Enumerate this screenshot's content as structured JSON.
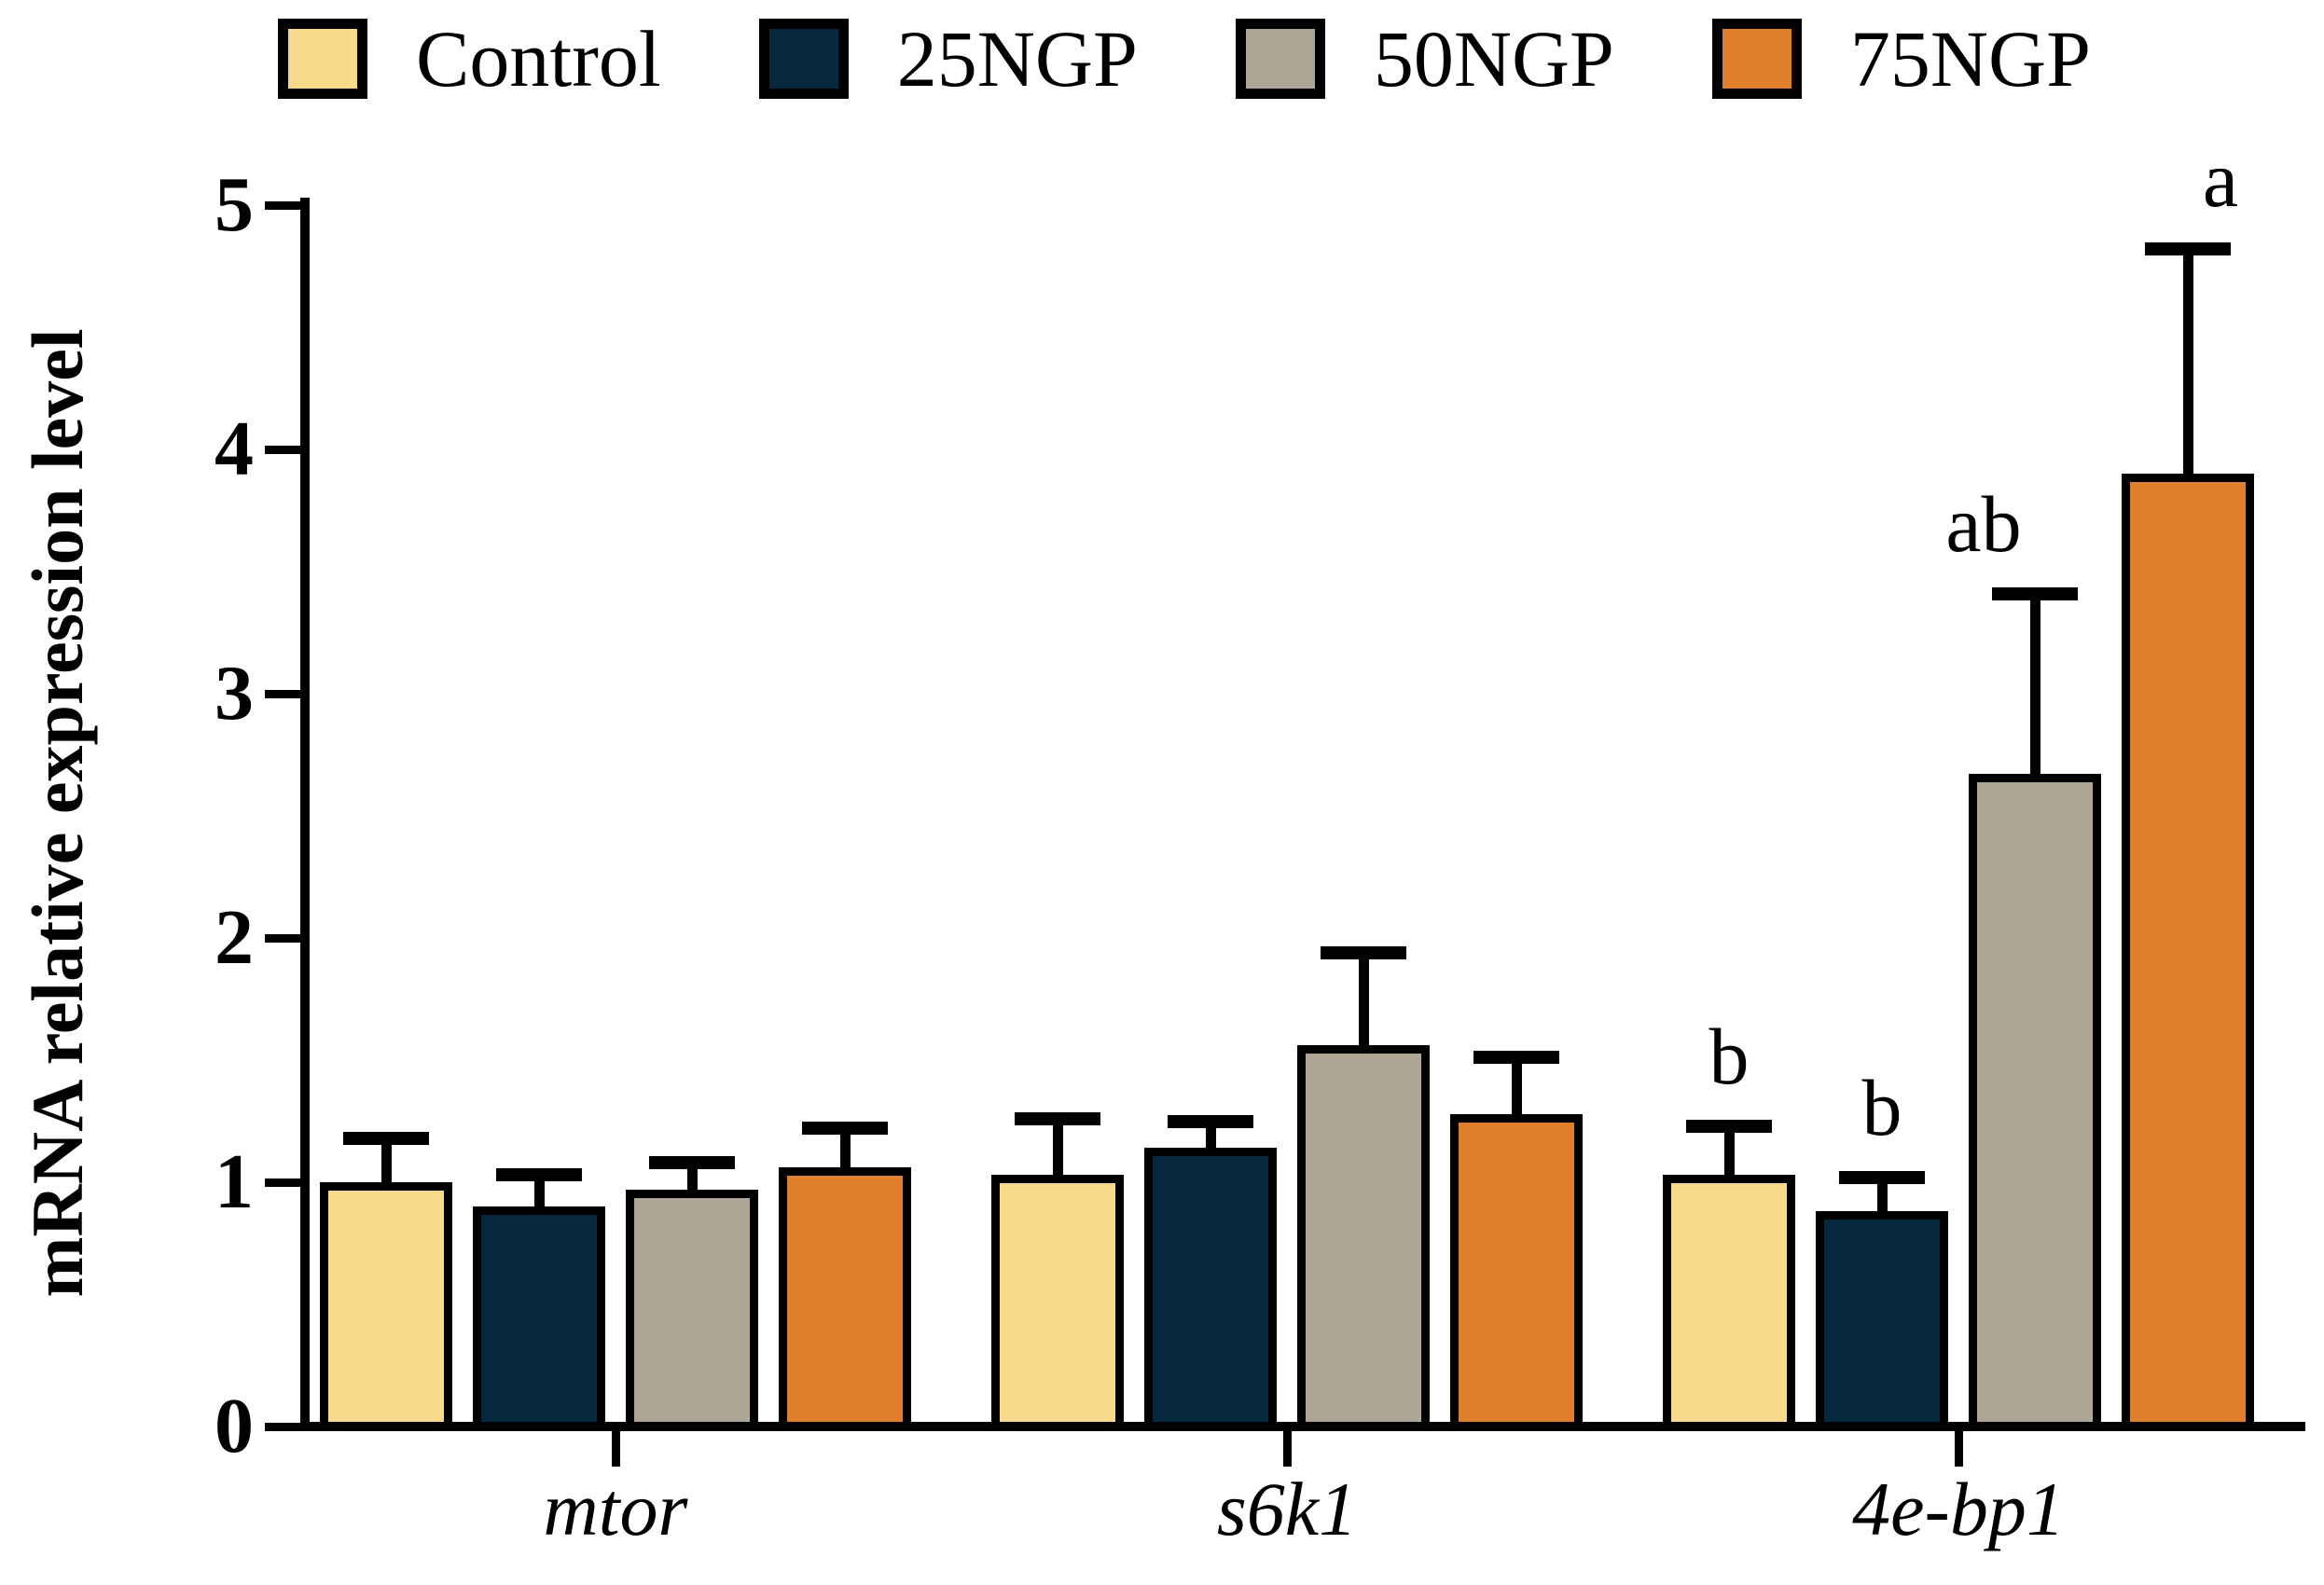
{
  "figure": {
    "background": "#ffffff"
  },
  "legend": [
    {
      "label": "Control",
      "color": "#F9D98C"
    },
    {
      "label": "25NGP",
      "color": "#05283C"
    },
    {
      "label": "50NGP",
      "color": "#AFA594"
    },
    {
      "label": "75NGP",
      "color": "#E07E2B"
    }
  ],
  "chart_data": {
    "type": "bar",
    "title": "",
    "xlabel": "",
    "ylabel": "mRNA relative expression level",
    "ylim": [
      0,
      5
    ],
    "yticks": [
      0,
      1,
      2,
      3,
      4,
      5
    ],
    "grid": false,
    "legend_position": "top",
    "error_bars": "upper SD whisker with cap",
    "categories": [
      "mtor",
      "s6k1",
      "4e-bp1"
    ],
    "series": [
      {
        "name": "Control",
        "color": "#F9D98C",
        "values": [
          1.0,
          1.03,
          1.03
        ],
        "errors": [
          0.18,
          0.23,
          0.2
        ],
        "sig": [
          "",
          "",
          "b"
        ]
      },
      {
        "name": "25NGP",
        "color": "#05283C",
        "values": [
          0.9,
          1.14,
          0.88
        ],
        "errors": [
          0.13,
          0.11,
          0.14
        ],
        "sig": [
          "",
          "",
          "b"
        ]
      },
      {
        "name": "50NGP",
        "color": "#AFA594",
        "values": [
          0.97,
          1.56,
          2.67
        ],
        "errors": [
          0.11,
          0.38,
          0.74
        ],
        "sig": [
          "",
          "",
          "ab"
        ]
      },
      {
        "name": "75NGP",
        "color": "#E07E2B",
        "values": [
          1.06,
          1.28,
          3.9
        ],
        "errors": [
          0.16,
          0.23,
          0.92
        ],
        "sig": [
          "",
          "",
          "a"
        ]
      }
    ]
  }
}
